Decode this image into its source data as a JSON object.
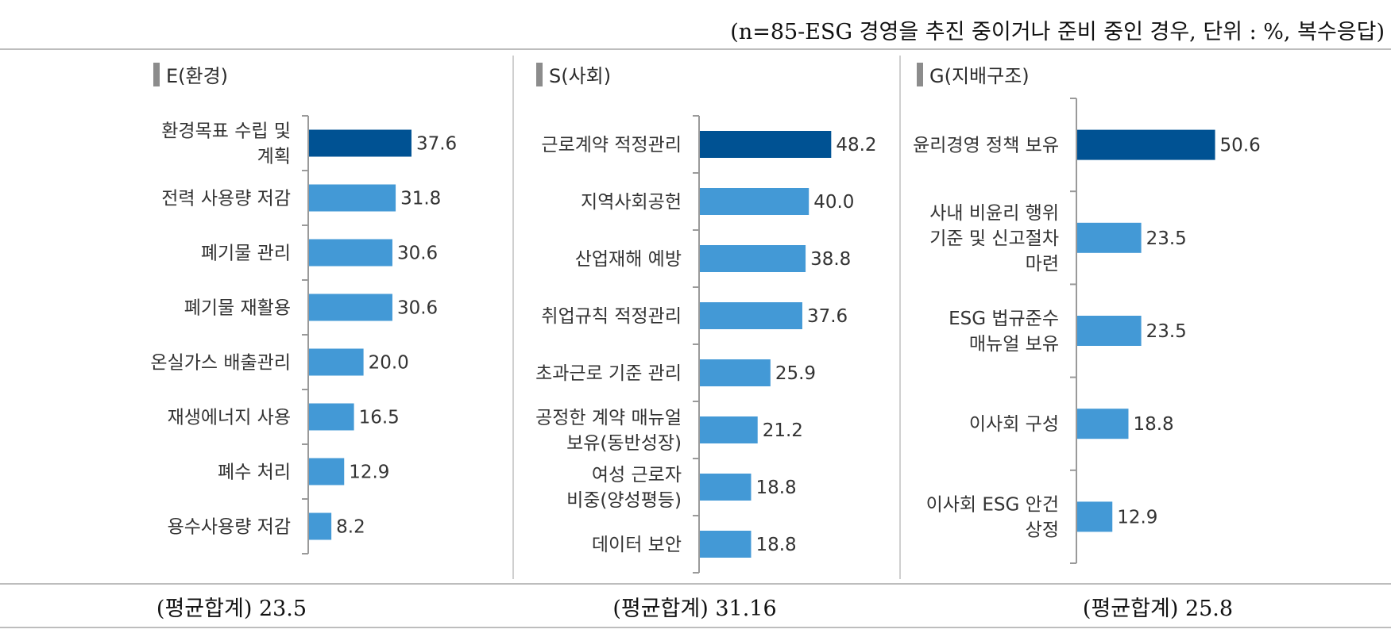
{
  "note": "(n=85-ESG 경영을 추진 중이거나 준비 중인 경우, 단위 : %, 복수응답)",
  "colors": {
    "highlight": "#005293",
    "normal": "#4399d6",
    "axis": "#9a9a9a"
  },
  "chart_data": [
    {
      "type": "bar",
      "orientation": "horizontal",
      "title": "E(환경)",
      "categories": [
        "환경목표 수립 및 계획",
        "전력 사용량 저감",
        "폐기물 관리",
        "폐기물 재활용",
        "온실가스 배출관리",
        "재생에너지 사용",
        "폐수 처리",
        "용수사용량 저감"
      ],
      "category_lines": [
        [
          "환경목표 수립 및",
          "계획"
        ],
        [
          "전력 사용량 저감"
        ],
        [
          "폐기물 관리"
        ],
        [
          "폐기물 재활용"
        ],
        [
          "온실가스 배출관리"
        ],
        [
          "재생에너지 사용"
        ],
        [
          "폐수 처리"
        ],
        [
          "용수사용량 저감"
        ]
      ],
      "values": [
        37.6,
        31.8,
        30.6,
        30.6,
        20.0,
        16.5,
        12.9,
        8.2
      ],
      "value_labels": [
        "37.6",
        "31.8",
        "30.6",
        "30.6",
        "20.0",
        "16.5",
        "12.9",
        "8.2"
      ],
      "highlight_index": 0,
      "footer_label": "(평균합계)",
      "footer_value": "23.5"
    },
    {
      "type": "bar",
      "orientation": "horizontal",
      "title": "S(사회)",
      "categories": [
        "근로계약 적정관리",
        "지역사회공헌",
        "산업재해 예방",
        "취업규칙 적정관리",
        "초과근로 기준 관리",
        "공정한 계약 매뉴얼 보유(동반성장)",
        "여성 근로자 비중(양성평등)",
        "데이터 보안"
      ],
      "category_lines": [
        [
          "근로계약 적정관리"
        ],
        [
          "지역사회공헌"
        ],
        [
          "산업재해 예방"
        ],
        [
          "취업규칙 적정관리"
        ],
        [
          "초과근로 기준 관리"
        ],
        [
          "공정한 계약 매뉴얼",
          "보유(동반성장)"
        ],
        [
          "여성 근로자",
          "비중(양성평등)"
        ],
        [
          "데이터 보안"
        ]
      ],
      "values": [
        48.2,
        40.0,
        38.8,
        37.6,
        25.9,
        21.2,
        18.8,
        18.8
      ],
      "value_labels": [
        "48.2",
        "40.0",
        "38.8",
        "37.6",
        "25.9",
        "21.2",
        "18.8",
        "18.8"
      ],
      "highlight_index": 0,
      "footer_label": "(평균합계)",
      "footer_value": "31.16"
    },
    {
      "type": "bar",
      "orientation": "horizontal",
      "title": "G(지배구조)",
      "categories": [
        "윤리경영 정책 보유",
        "사내 비윤리 행위 기준 및 신고절차 마련",
        "ESG 법규준수 매뉴얼 보유",
        "이사회 구성",
        "이사회 ESG 안건 상정"
      ],
      "category_lines": [
        [
          "윤리경영 정책 보유"
        ],
        [
          "사내 비윤리 행위",
          "기준 및 신고절차",
          "마련"
        ],
        [
          "ESG 법규준수",
          "매뉴얼 보유"
        ],
        [
          "이사회 구성"
        ],
        [
          "이사회 ESG 안건",
          "상정"
        ]
      ],
      "values": [
        50.6,
        23.5,
        23.5,
        18.8,
        12.9
      ],
      "value_labels": [
        "50.6",
        "23.5",
        "23.5",
        "18.8",
        "12.9"
      ],
      "highlight_index": 0,
      "footer_label": "(평균합계)",
      "footer_value": "25.8"
    }
  ]
}
